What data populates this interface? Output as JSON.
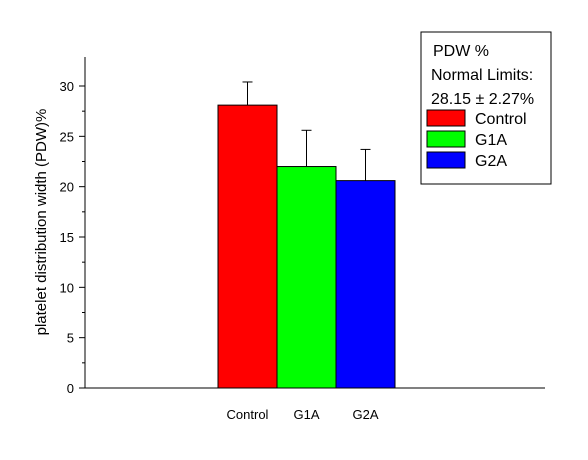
{
  "chart_data": {
    "type": "bar",
    "categories": [
      "Control",
      "G1A",
      "G2A"
    ],
    "values": [
      28.1,
      22.0,
      20.6
    ],
    "errors": [
      2.3,
      3.6,
      3.1
    ],
    "colors": [
      "#ff0000",
      "#00ff00",
      "#0000ff"
    ],
    "ylabel": "platelet distribution width (PDW)%",
    "xlabel": "",
    "ylim": [
      0,
      32
    ],
    "yticks": [
      0,
      5,
      10,
      15,
      20,
      25,
      30
    ],
    "grid": false,
    "legend": {
      "placement": "top-right",
      "header_lines": [
        "PDW %",
        "Normal Limits:",
        "28.15 ± 2.27%"
      ],
      "entries": [
        "Control",
        "G1A",
        "G2A"
      ]
    }
  }
}
